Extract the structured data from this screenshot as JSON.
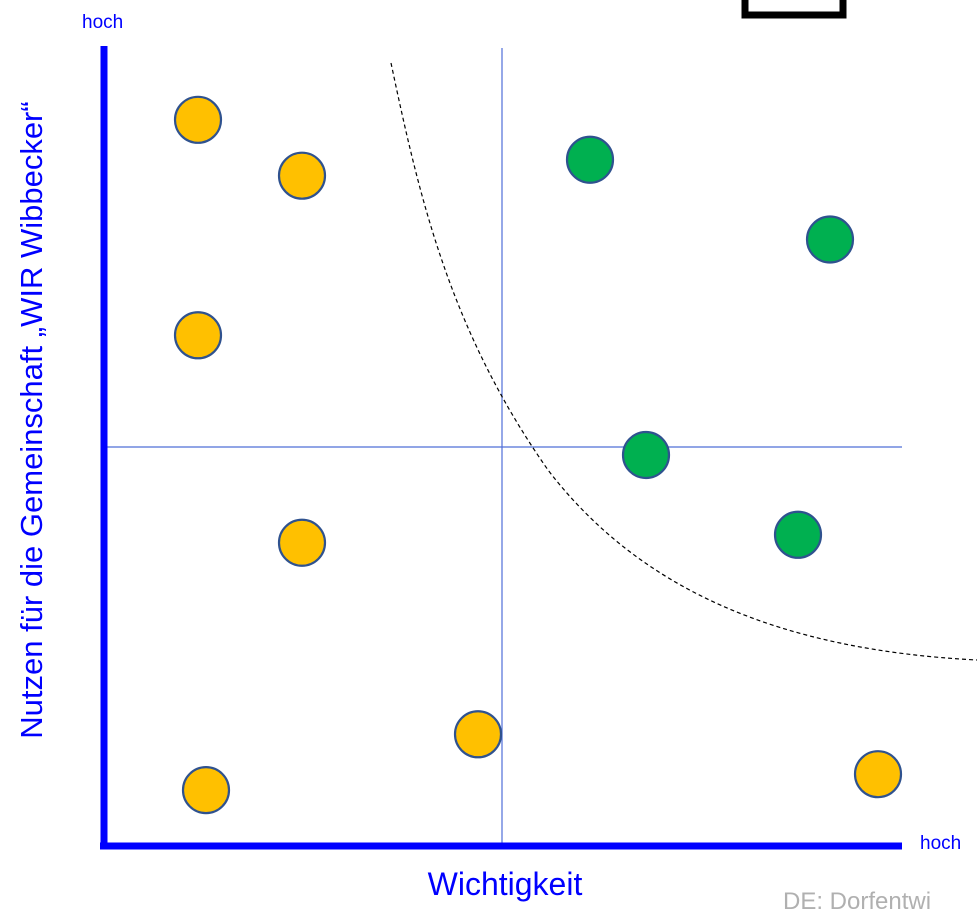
{
  "chart_data": {
    "type": "scatter",
    "title": "",
    "xlabel": "Wichtigkeit",
    "ylabel": "Nutzen für die Gemeinschaft „WIR Wibbecker“",
    "x_high_label": "hoch",
    "y_high_label": "hoch",
    "footer": "DE: Dorfentwi",
    "xlim": [
      0,
      100
    ],
    "ylim": [
      0,
      100
    ],
    "grid": false,
    "quadrant_lines": {
      "x": 50,
      "y": 50
    },
    "colors": {
      "axis": "#0000ff",
      "quadrant": "#4f6fd8",
      "yellow": "#ffc000",
      "green": "#00b050",
      "outline": "#2f528f"
    },
    "series": [
      {
        "color": "yellow",
        "points": [
          {
            "x": 12,
            "y": 91
          },
          {
            "x": 25,
            "y": 84
          },
          {
            "x": 12,
            "y": 64
          },
          {
            "x": 25,
            "y": 38
          },
          {
            "x": 47,
            "y": 14
          },
          {
            "x": 13,
            "y": 7
          },
          {
            "x": 97,
            "y": 9
          }
        ]
      },
      {
        "color": "green",
        "points": [
          {
            "x": 61,
            "y": 86
          },
          {
            "x": 91,
            "y": 76
          },
          {
            "x": 68,
            "y": 49
          },
          {
            "x": 87,
            "y": 39
          }
        ]
      }
    ]
  }
}
